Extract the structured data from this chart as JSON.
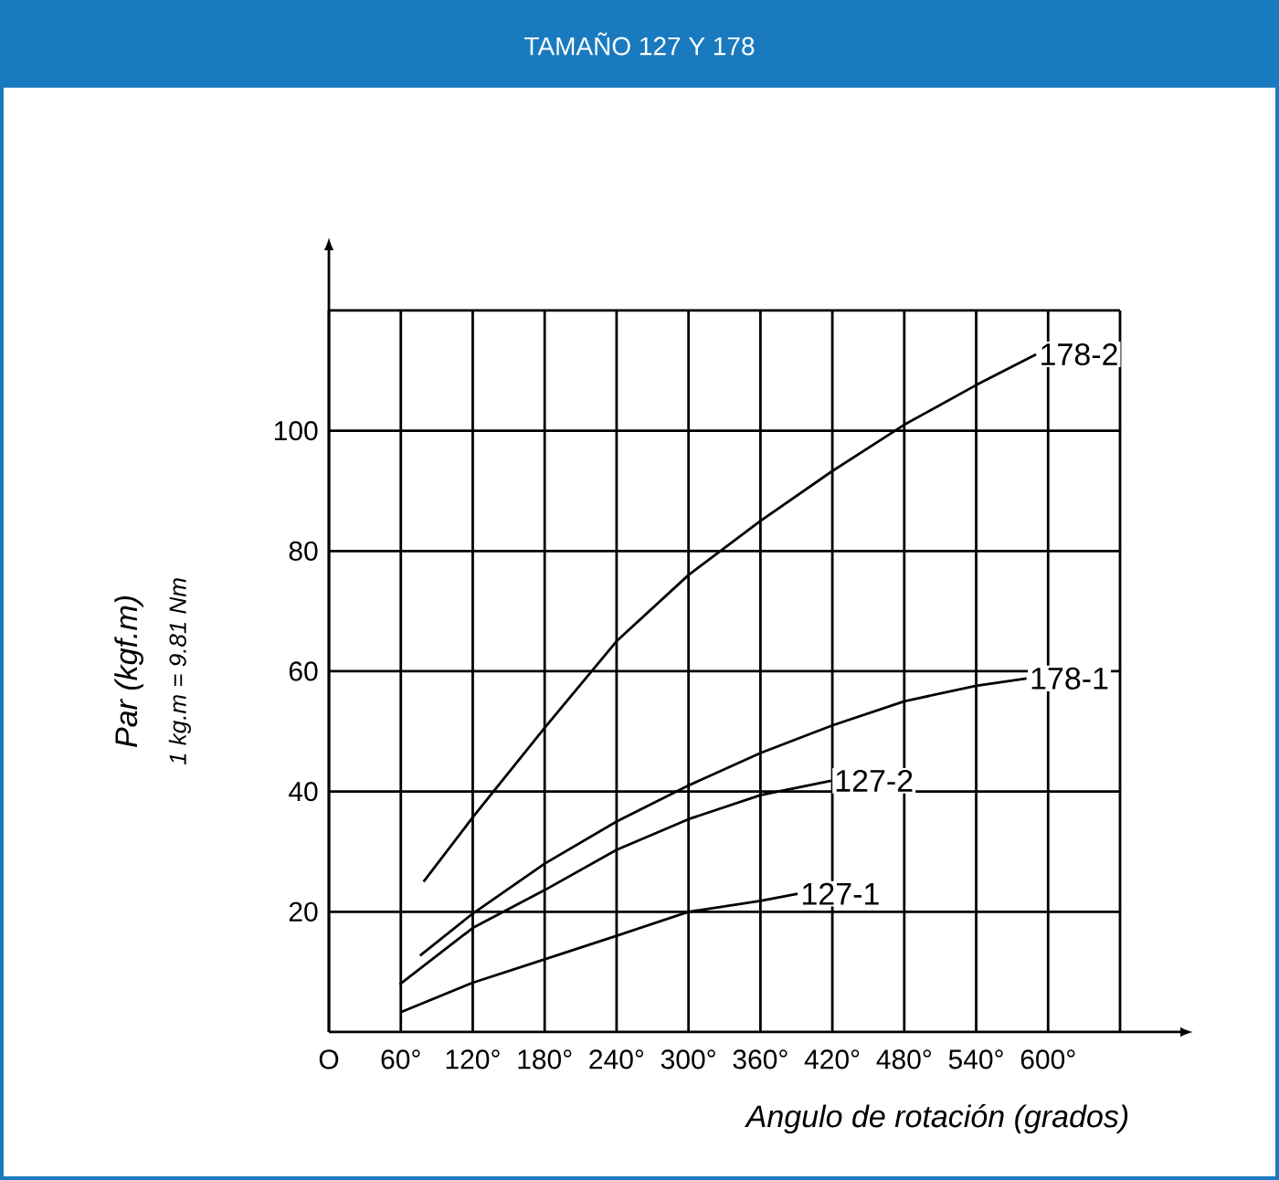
{
  "chart_data": {
    "type": "line",
    "title": "TAMAÑO 127 Y 178",
    "xlabel": "Angulo de rotación (grados)",
    "ylabel": "Par  (kgf.m)",
    "annotations": [
      "1 kg.m = 9.81 Nm"
    ],
    "xlim": [
      0,
      660
    ],
    "ylim": [
      0,
      120
    ],
    "xticks": [
      {
        "value": 0,
        "label": "O"
      },
      {
        "value": 60,
        "label": "60°"
      },
      {
        "value": 120,
        "label": "120°"
      },
      {
        "value": 180,
        "label": "180°"
      },
      {
        "value": 240,
        "label": "240°"
      },
      {
        "value": 300,
        "label": "300°"
      },
      {
        "value": 360,
        "label": "360°"
      },
      {
        "value": 420,
        "label": "420°"
      },
      {
        "value": 480,
        "label": "480°"
      },
      {
        "value": 540,
        "label": "540°"
      },
      {
        "value": 600,
        "label": "600°"
      },
      {
        "value": 660,
        "label": null
      }
    ],
    "yticks": [
      20,
      40,
      60,
      80,
      100,
      {
        "value": 120,
        "label": null
      }
    ],
    "grid": true,
    "legend": false,
    "marker": "none",
    "line_style": "solid",
    "series": [
      {
        "name": "178-2",
        "color": "#000000",
        "x": [
          79,
          120,
          180,
          240,
          300,
          360,
          420,
          480,
          540,
          590
        ],
        "values": [
          25,
          35.7,
          50.6,
          65,
          76,
          85,
          93.3,
          101,
          107.6,
          112.7
        ]
      },
      {
        "name": "178-1",
        "color": "#000000",
        "x": [
          76,
          120,
          180,
          240,
          300,
          360,
          420,
          480,
          540,
          582
        ],
        "values": [
          12.7,
          19.7,
          28,
          35,
          41,
          46.4,
          51,
          55,
          57.6,
          58.8
        ]
      },
      {
        "name": "127-2",
        "color": "#000000",
        "x": [
          59,
          120,
          180,
          240,
          300,
          360,
          419
        ],
        "values": [
          7.9,
          17.3,
          23.6,
          30.3,
          35.4,
          39.4,
          41.8
        ]
      },
      {
        "name": "127-1",
        "color": "#000000",
        "x": [
          60,
          120,
          180,
          240,
          300,
          360,
          391
        ],
        "values": [
          3.3,
          8.2,
          12.1,
          16,
          20,
          21.8,
          23
        ]
      }
    ]
  }
}
